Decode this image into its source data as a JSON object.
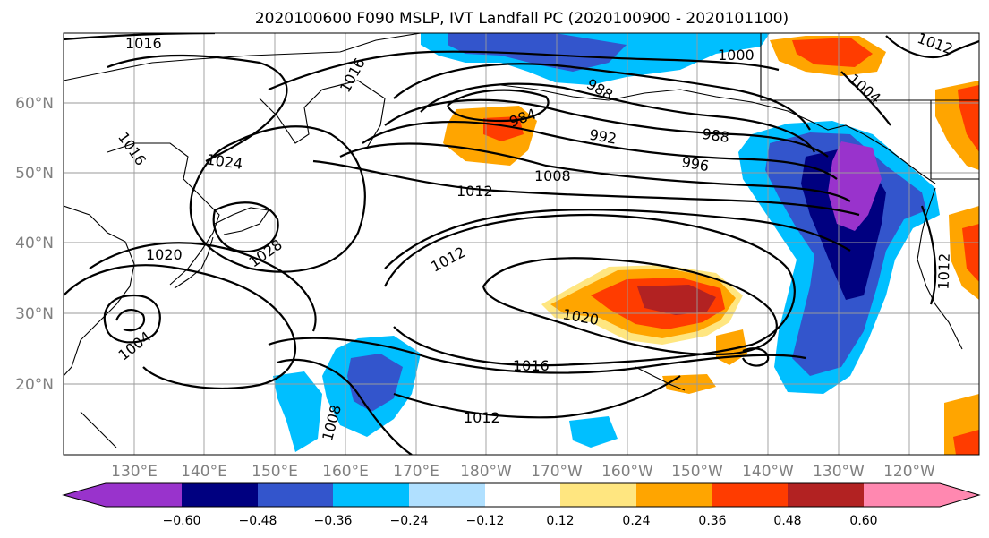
{
  "title": "2020100600 F090 MSLP, IVT Landfall PC (2020100900 - 2020101100)",
  "lat_labels": [
    "60°N",
    "50°N",
    "40°N",
    "30°N",
    "20°N"
  ],
  "lon_labels": [
    "130°E",
    "140°E",
    "150°E",
    "160°E",
    "170°E",
    "180°W",
    "170°W",
    "160°W",
    "150°W",
    "140°W",
    "130°W",
    "120°W"
  ],
  "colorbar": {
    "colors": [
      "#9933cc",
      "#000080",
      "#3355cc",
      "#00bfff",
      "#b0e0ff",
      "#ffffff",
      "#ffe680",
      "#ffa500",
      "#ff3c00",
      "#b22222",
      "#ff88b0"
    ],
    "tick_labels": [
      "−0.60",
      "−0.48",
      "−0.36",
      "−0.24",
      "−0.12",
      "0.12",
      "0.24",
      "0.36",
      "0.48",
      "0.60"
    ]
  },
  "contour_labels": [
    "1016",
    "1016",
    "1016",
    "1000",
    "1012",
    "1004",
    "984",
    "988",
    "992",
    "988",
    "996",
    "1008",
    "1024",
    "1012",
    "1012",
    "1028",
    "1020",
    "1020",
    "1004",
    "1016",
    "1012",
    "1012",
    "1008"
  ]
}
